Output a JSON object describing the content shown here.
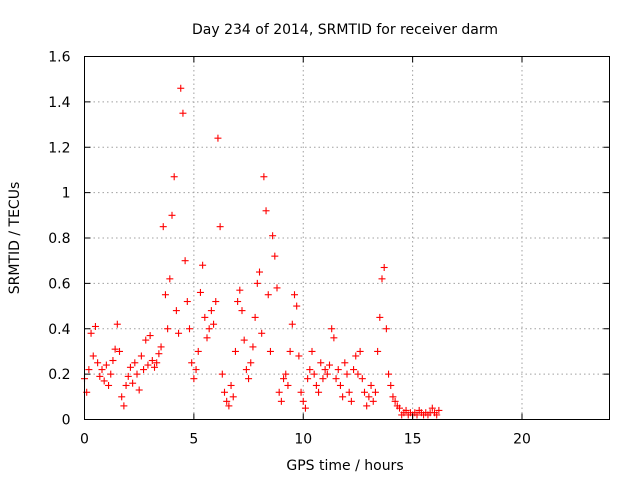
{
  "chart_data": {
    "type": "scatter",
    "title": "Day 234 of 2014, SRMTID for receiver darm",
    "xlabel": "GPS time / hours",
    "ylabel": "SRMTID / TECUs",
    "xlim": [
      0,
      24
    ],
    "ylim": [
      0,
      1.6
    ],
    "xticks": [
      0,
      5,
      10,
      15,
      20
    ],
    "xtick_labels": [
      "0",
      "5",
      "10",
      "15",
      "20"
    ],
    "yticks": [
      0,
      0.2,
      0.4,
      0.6,
      0.8,
      1.0,
      1.2,
      1.4,
      1.6
    ],
    "ytick_labels": [
      "0",
      "0.2",
      "0.4",
      "0.6",
      "0.8",
      "1",
      "1.2",
      "1.4",
      "1.6"
    ],
    "grid": true,
    "marker": "+",
    "color": "#ff0000",
    "series": [
      {
        "name": "SRMTID",
        "x": [
          0.0,
          0.1,
          0.2,
          0.3,
          0.4,
          0.5,
          0.6,
          0.7,
          0.8,
          0.9,
          1.0,
          1.1,
          1.2,
          1.3,
          1.4,
          1.5,
          1.6,
          1.7,
          1.8,
          1.9,
          2.0,
          2.1,
          2.2,
          2.3,
          2.4,
          2.5,
          2.6,
          2.7,
          2.8,
          2.9,
          3.0,
          3.1,
          3.2,
          3.3,
          3.4,
          3.5,
          3.6,
          3.7,
          3.8,
          3.9,
          4.0,
          4.1,
          4.2,
          4.3,
          4.4,
          4.5,
          4.6,
          4.7,
          4.8,
          4.9,
          5.0,
          5.1,
          5.2,
          5.3,
          5.4,
          5.5,
          5.6,
          5.7,
          5.8,
          5.9,
          6.0,
          6.1,
          6.2,
          6.3,
          6.4,
          6.5,
          6.6,
          6.7,
          6.8,
          6.9,
          7.0,
          7.1,
          7.2,
          7.3,
          7.4,
          7.5,
          7.6,
          7.7,
          7.8,
          7.9,
          8.0,
          8.1,
          8.2,
          8.3,
          8.4,
          8.5,
          8.6,
          8.7,
          8.8,
          8.9,
          9.0,
          9.1,
          9.2,
          9.3,
          9.4,
          9.5,
          9.6,
          9.7,
          9.8,
          9.9,
          10.0,
          10.1,
          10.2,
          10.3,
          10.4,
          10.5,
          10.6,
          10.7,
          10.8,
          10.9,
          11.0,
          11.1,
          11.2,
          11.3,
          11.4,
          11.5,
          11.6,
          11.7,
          11.8,
          11.9,
          12.0,
          12.1,
          12.2,
          12.3,
          12.4,
          12.5,
          12.6,
          12.7,
          12.8,
          12.9,
          13.0,
          13.1,
          13.2,
          13.3,
          13.4,
          13.5,
          13.6,
          13.7,
          13.8,
          13.9,
          14.0,
          14.1,
          14.2,
          14.3,
          14.4,
          14.5,
          14.6,
          14.7,
          14.8,
          14.9,
          15.0,
          15.1,
          15.2,
          15.3,
          15.4,
          15.5,
          15.6,
          15.7,
          15.8,
          15.9,
          16.0,
          16.1,
          16.2
        ],
        "y": [
          0.18,
          0.12,
          0.22,
          0.38,
          0.28,
          0.41,
          0.25,
          0.19,
          0.22,
          0.17,
          0.24,
          0.15,
          0.2,
          0.26,
          0.31,
          0.42,
          0.3,
          0.1,
          0.06,
          0.15,
          0.19,
          0.23,
          0.16,
          0.25,
          0.2,
          0.13,
          0.28,
          0.22,
          0.35,
          0.24,
          0.37,
          0.26,
          0.23,
          0.25,
          0.29,
          0.32,
          0.85,
          0.55,
          0.4,
          0.62,
          0.9,
          1.07,
          0.48,
          0.38,
          1.46,
          1.35,
          0.7,
          0.52,
          0.4,
          0.25,
          0.18,
          0.22,
          0.3,
          0.56,
          0.68,
          0.45,
          0.36,
          0.4,
          0.48,
          0.42,
          0.52,
          1.24,
          0.85,
          0.2,
          0.12,
          0.08,
          0.06,
          0.15,
          0.1,
          0.3,
          0.52,
          0.57,
          0.48,
          0.35,
          0.22,
          0.18,
          0.25,
          0.32,
          0.45,
          0.6,
          0.65,
          0.38,
          1.07,
          0.92,
          0.55,
          0.3,
          0.81,
          0.72,
          0.58,
          0.12,
          0.08,
          0.18,
          0.2,
          0.15,
          0.3,
          0.42,
          0.55,
          0.5,
          0.28,
          0.12,
          0.08,
          0.05,
          0.18,
          0.22,
          0.3,
          0.2,
          0.15,
          0.12,
          0.25,
          0.18,
          0.22,
          0.2,
          0.24,
          0.4,
          0.36,
          0.18,
          0.22,
          0.15,
          0.1,
          0.25,
          0.2,
          0.12,
          0.08,
          0.22,
          0.28,
          0.2,
          0.3,
          0.18,
          0.12,
          0.06,
          0.1,
          0.15,
          0.08,
          0.12,
          0.3,
          0.45,
          0.62,
          0.67,
          0.4,
          0.2,
          0.15,
          0.1,
          0.08,
          0.06,
          0.05,
          0.02,
          0.03,
          0.04,
          0.02,
          0.03,
          0.02,
          0.03,
          0.02,
          0.04,
          0.03,
          0.02,
          0.03,
          0.02,
          0.03,
          0.05,
          0.03,
          0.02,
          0.04
        ]
      }
    ]
  }
}
